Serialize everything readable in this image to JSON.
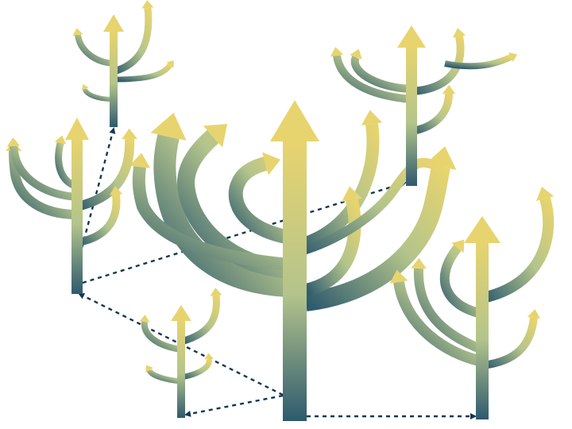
{
  "diagram": {
    "kind": "branching-arrow-trees",
    "text": [],
    "colors": {
      "background": "#ffffff",
      "tip": "#e8d46e",
      "mid": "#b3c48c",
      "base": "#2e5a6e",
      "connector": "#123850"
    },
    "trees": [
      {
        "id": "central",
        "branches": 8
      },
      {
        "id": "left",
        "branches": 5
      },
      {
        "id": "top-left",
        "branches": 4
      },
      {
        "id": "top-right",
        "branches": 5
      },
      {
        "id": "right",
        "branches": 5
      },
      {
        "id": "bottom-small",
        "branches": 4
      }
    ],
    "connectors": [
      {
        "from": "central",
        "to": "left",
        "style": "dashed-arrow"
      },
      {
        "from": "central",
        "to": "bottom-small",
        "style": "dashed-arrow"
      },
      {
        "from": "central",
        "to": "right",
        "style": "dashed-arrow"
      },
      {
        "from": "left",
        "to": "top-left",
        "style": "dashed-arrow"
      },
      {
        "from": "left",
        "to": "top-right",
        "style": "dashed-arrow"
      }
    ]
  }
}
